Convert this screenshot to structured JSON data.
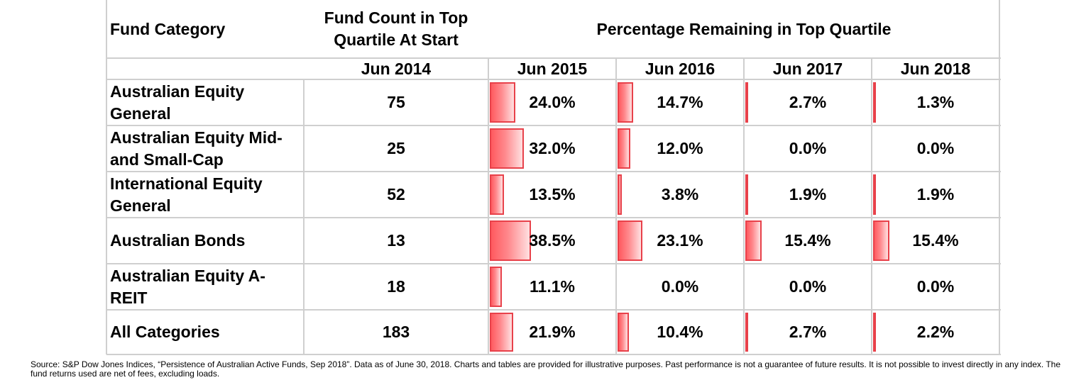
{
  "chart_data": {
    "type": "table",
    "headers": {
      "category": "Fund Category",
      "count": "Fund Count in Top Quartile At Start",
      "count_line1": "Fund Count in Top",
      "count_line2": "Quartile At Start",
      "percentage": "Percentage Remaining in Top Quartile"
    },
    "periods": [
      "Jun 2014",
      "Jun 2015",
      "Jun 2016",
      "Jun 2017",
      "Jun 2018"
    ],
    "rows": [
      {
        "category": "Australian Equity General",
        "line1": "Australian Equity",
        "line2": "General",
        "count": "75",
        "values": [
          "24.0%",
          "14.7%",
          "2.7%",
          "1.3%"
        ],
        "nums": [
          24.0,
          14.7,
          2.7,
          1.3
        ]
      },
      {
        "category": "Australian Equity Mid- and Small-Cap",
        "line1": "Australian Equity Mid-",
        "line2": "and Small-Cap",
        "count": "25",
        "values": [
          "32.0%",
          "12.0%",
          "0.0%",
          "0.0%"
        ],
        "nums": [
          32.0,
          12.0,
          0.0,
          0.0
        ]
      },
      {
        "category": "International Equity General",
        "line1": "International Equity",
        "line2": "General",
        "count": "52",
        "values": [
          "13.5%",
          "3.8%",
          "1.9%",
          "1.9%"
        ],
        "nums": [
          13.5,
          3.8,
          1.9,
          1.9
        ]
      },
      {
        "category": "Australian Bonds",
        "line1": "Australian Bonds",
        "line2": "",
        "count": "13",
        "values": [
          "38.5%",
          "23.1%",
          "15.4%",
          "15.4%"
        ],
        "nums": [
          38.5,
          23.1,
          15.4,
          15.4
        ]
      },
      {
        "category": "Australian Equity A-REIT",
        "line1": "Australian Equity A-",
        "line2": "REIT",
        "count": "18",
        "values": [
          "11.1%",
          "0.0%",
          "0.0%",
          "0.0%"
        ],
        "nums": [
          11.1,
          0.0,
          0.0,
          0.0
        ]
      },
      {
        "category": "All Categories",
        "line1": "All Categories",
        "line2": "",
        "count": "183",
        "values": [
          "21.9%",
          "10.4%",
          "2.7%",
          "2.2%"
        ],
        "nums": [
          21.9,
          10.4,
          2.7,
          2.2
        ]
      }
    ],
    "bar_max": 38.5,
    "bar_color": "#ff5a5f",
    "bar_border_color": "#e8414a",
    "grid_color": "#cfcfcf"
  },
  "source": "Source: S&P Dow Jones Indices, “Persistence of Australian Active Funds, Sep 2018”. Data as of June 30, 2018. Charts and tables are provided for illustrative purposes.  Past performance is not a guarantee of future results. It is not possible to invest directly in any index. The fund returns used are net of fees, excluding loads."
}
